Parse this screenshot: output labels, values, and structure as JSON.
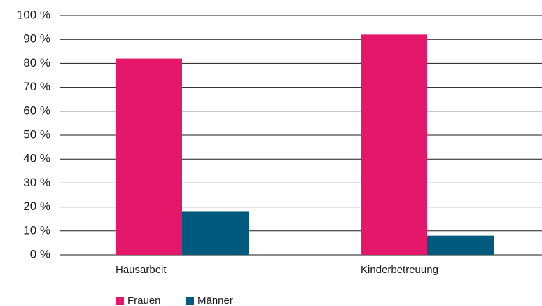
{
  "chart_data": {
    "type": "bar",
    "categories": [
      "Hausarbeit",
      "Kinderbetreuung"
    ],
    "series": [
      {
        "name": "Frauen",
        "color": "#e5176b",
        "values": [
          82,
          92
        ]
      },
      {
        "name": "Männer",
        "color": "#005a7d",
        "values": [
          18,
          8
        ]
      }
    ],
    "ylim": [
      0,
      100
    ],
    "yticks": [
      {
        "value": 0,
        "label": "0 %"
      },
      {
        "value": 10,
        "label": "10 %"
      },
      {
        "value": 20,
        "label": "20 %"
      },
      {
        "value": 30,
        "label": "30 %"
      },
      {
        "value": 40,
        "label": "40 %"
      },
      {
        "value": 50,
        "label": "50 %"
      },
      {
        "value": 60,
        "label": "60 %"
      },
      {
        "value": 70,
        "label": "70 %"
      },
      {
        "value": 80,
        "label": "80 %"
      },
      {
        "value": 90,
        "label": "90 %"
      },
      {
        "value": 100,
        "label": "100 %"
      }
    ],
    "grid": true,
    "legend": "bottom"
  }
}
